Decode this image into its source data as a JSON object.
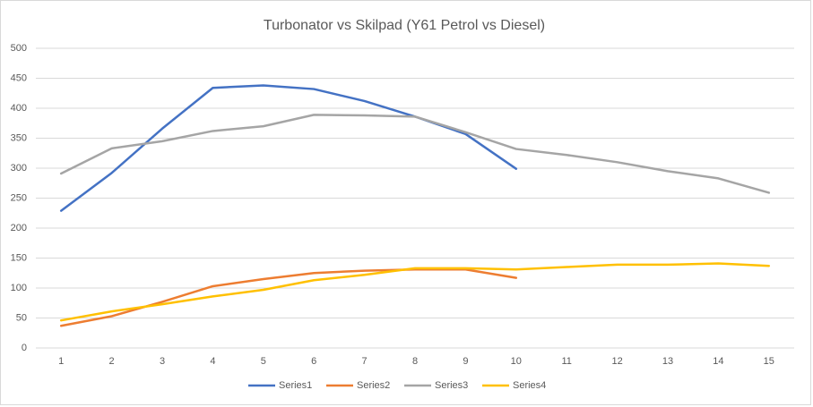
{
  "chart_data": {
    "type": "line",
    "title": "Turbonator vs Skilpad (Y61 Petrol vs Diesel)",
    "categories": [
      1,
      2,
      3,
      4,
      5,
      6,
      7,
      8,
      9,
      10,
      11,
      12,
      13,
      14,
      15
    ],
    "series": [
      {
        "name": "Series1",
        "color": "#4472c4",
        "values": [
          229,
          292,
          366,
          434,
          438,
          432,
          412,
          386,
          357,
          299,
          null,
          null,
          null,
          null,
          null
        ]
      },
      {
        "name": "Series2",
        "color": "#ed7d31",
        "values": [
          37,
          53,
          77,
          103,
          115,
          125,
          129,
          131,
          131,
          117,
          null,
          null,
          null,
          null,
          null
        ]
      },
      {
        "name": "Series3",
        "color": "#a5a5a5",
        "values": [
          291,
          333,
          345,
          362,
          370,
          389,
          388,
          386,
          360,
          332,
          322,
          310,
          295,
          283,
          259
        ]
      },
      {
        "name": "Series4",
        "color": "#ffc000",
        "values": [
          46,
          61,
          73,
          86,
          97,
          113,
          122,
          133,
          133,
          131,
          135,
          139,
          139,
          141,
          137
        ]
      }
    ],
    "ylim": [
      0,
      500
    ],
    "yticks": [
      0,
      50,
      100,
      150,
      200,
      250,
      300,
      350,
      400,
      450,
      500
    ],
    "grid": true,
    "legend": "bottom"
  }
}
